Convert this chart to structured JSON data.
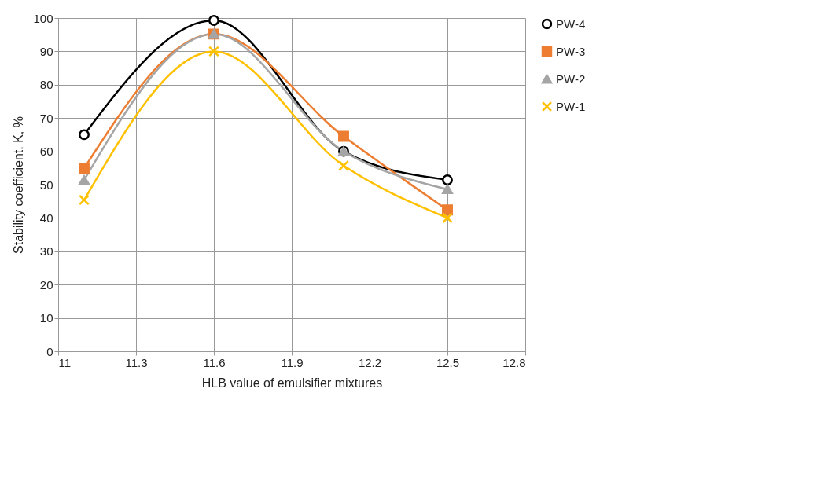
{
  "chart_data": {
    "type": "line",
    "xlabel": "HLB value of emulsifier mixtures",
    "ylabel": "Stability coefficient, K, %",
    "x": [
      11.1,
      11.6,
      12.1,
      12.5
    ],
    "series": [
      {
        "name": "PW-4",
        "color": "#000000",
        "marker": "circle",
        "values": [
          65,
          99.3,
          60,
          51.4
        ]
      },
      {
        "name": "PW-3",
        "color": "#ed7d31",
        "marker": "square",
        "values": [
          54.9,
          95.2,
          64.5,
          42.4
        ]
      },
      {
        "name": "PW-2",
        "color": "#a5a5a5",
        "marker": "triangle",
        "values": [
          51.4,
          95.2,
          60,
          48.6
        ]
      },
      {
        "name": "PW-1",
        "color": "#ffc000",
        "marker": "cross",
        "values": [
          45.4,
          90,
          55.7,
          40
        ]
      }
    ],
    "xlim": [
      11,
      12.8
    ],
    "xticks": [
      {
        "value": 11,
        "label": "11"
      },
      11.3,
      11.6,
      11.9,
      12.2,
      12.5,
      12.8
    ],
    "ylim": [
      0,
      100
    ],
    "yticks": [
      0,
      10,
      20,
      30,
      40,
      50,
      60,
      70,
      80,
      90,
      100
    ],
    "grid": true,
    "legend": "right",
    "line_style": "solid"
  }
}
